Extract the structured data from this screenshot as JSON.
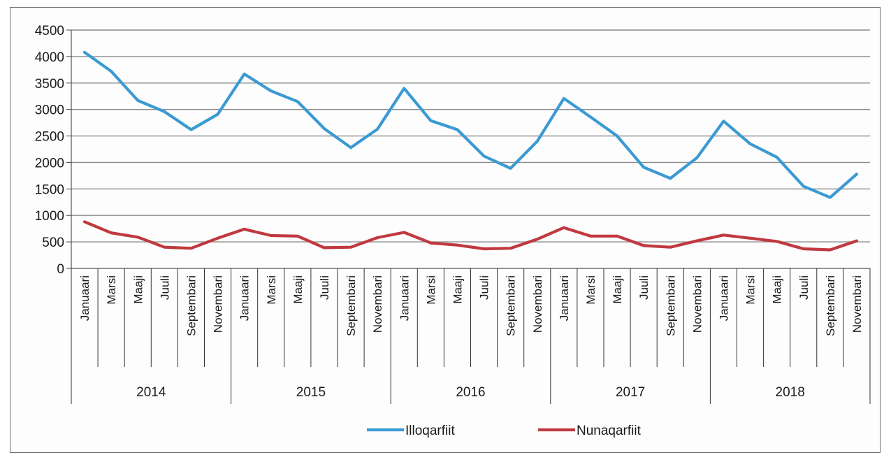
{
  "chart_data": {
    "type": "line",
    "title": "",
    "xlabel": "",
    "ylabel": "",
    "ylim": [
      0,
      4500
    ],
    "yticks": [
      0,
      500,
      1000,
      1500,
      2000,
      2500,
      3000,
      3500,
      4000,
      4500
    ],
    "grid": true,
    "legend_position": "bottom",
    "months": [
      "Januaari",
      "Marsi",
      "Maaji",
      "Juuli",
      "Septembari",
      "Novembari"
    ],
    "years": [
      "2014",
      "2015",
      "2016",
      "2017",
      "2018"
    ],
    "series": [
      {
        "name": "Illoqarfiit",
        "color": "#3b9ad3",
        "values": [
          4080,
          3720,
          3170,
          2960,
          2620,
          2910,
          3670,
          3350,
          3150,
          2640,
          2280,
          2630,
          3400,
          2790,
          2620,
          2120,
          1890,
          2400,
          3210,
          2860,
          2500,
          1910,
          1700,
          2090,
          2780,
          2350,
          2100,
          1550,
          1340,
          1780
        ]
      },
      {
        "name": "Nunaqarfiit",
        "color": "#c0393f",
        "values": [
          880,
          670,
          590,
          400,
          380,
          570,
          740,
          620,
          610,
          390,
          400,
          580,
          680,
          480,
          440,
          370,
          380,
          550,
          770,
          610,
          610,
          430,
          400,
          520,
          630,
          570,
          510,
          370,
          350,
          520
        ]
      }
    ]
  }
}
